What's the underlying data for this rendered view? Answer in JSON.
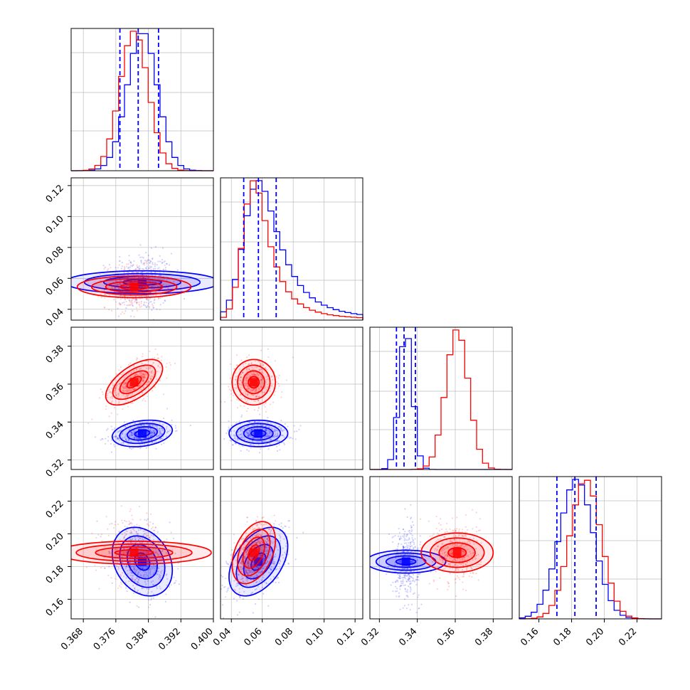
{
  "chart_data": {
    "type": "corner",
    "parameters": [
      {
        "range": [
          0.365,
          0.4
        ],
        "ticks": [
          0.368,
          0.376,
          0.384,
          0.392,
          0.4
        ],
        "tick_labels": [
          "0.368",
          "0.376",
          "0.384",
          "0.392",
          "0.400"
        ]
      },
      {
        "range": [
          0.033,
          0.125
        ],
        "ticks": [
          0.04,
          0.06,
          0.08,
          0.1,
          0.12
        ],
        "tick_labels": [
          "0.04",
          "0.06",
          "0.08",
          "0.10",
          "0.12"
        ]
      },
      {
        "range": [
          0.315,
          0.39
        ],
        "ticks": [
          0.32,
          0.34,
          0.36,
          0.38
        ],
        "tick_labels": [
          "0.32",
          "0.34",
          "0.36",
          "0.38"
        ]
      },
      {
        "range": [
          0.148,
          0.235
        ],
        "ticks": [
          0.16,
          0.18,
          0.2,
          0.22
        ],
        "tick_labels": [
          "0.16",
          "0.18",
          "0.20",
          "0.22"
        ]
      }
    ],
    "series": [
      {
        "color": "#ff0000",
        "mean": [
          0.3805,
          0.0545,
          0.361,
          0.1885
        ],
        "sd": [
          0.0035,
          0.007,
          0.006,
          0.0095
        ],
        "correlation": {
          "0-2": 0.6,
          "1-3": 0.4,
          "0-3": 0.0,
          "0-1": 0.0,
          "1-2": 0.0,
          "2-3": 0.0
        }
      },
      {
        "color": "#0000ff",
        "mean": [
          0.3825,
          0.0575,
          0.334,
          0.183
        ],
        "sd": [
          0.0037,
          0.0095,
          0.0035,
          0.0105
        ],
        "correlation": {
          "0-2": 0.25,
          "1-3": 0.45,
          "0-3": -0.25,
          "0-1": 0.0,
          "1-2": 0.0,
          "2-3": 0.0
        }
      }
    ],
    "quantile_lines": {
      "color": "#0000ff",
      "values": [
        [
          0.377,
          0.3815,
          0.3865
        ],
        [
          0.048,
          0.0575,
          0.069
        ],
        [
          0.329,
          0.333,
          0.339
        ],
        [
          0.171,
          0.182,
          0.195
        ]
      ]
    },
    "grid": true,
    "legend": "none"
  }
}
